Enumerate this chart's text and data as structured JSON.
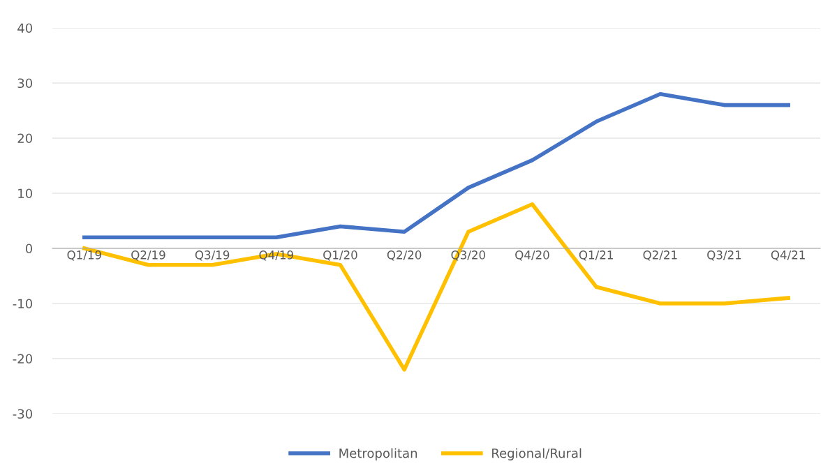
{
  "chart_data": {
    "type": "line",
    "categories": [
      "Q1/19",
      "Q2/19",
      "Q3/19",
      "Q4/19",
      "Q1/20",
      "Q2/20",
      "Q3/20",
      "Q4/20",
      "Q1/21",
      "Q2/21",
      "Q3/21",
      "Q4/21"
    ],
    "series": [
      {
        "name": "Metropolitan",
        "color": "#4472c4",
        "values": [
          2,
          2,
          2,
          2,
          4,
          3,
          11,
          16,
          23,
          28,
          26,
          26
        ]
      },
      {
        "name": "Regional/Rural",
        "color": "#ffc000",
        "values": [
          0,
          -3,
          -3,
          -1,
          -3,
          -22,
          3,
          8,
          -7,
          -10,
          -10,
          -9
        ]
      }
    ],
    "ylim": [
      -30,
      40
    ],
    "yticks": [
      -30,
      -20,
      -10,
      0,
      10,
      20,
      30,
      40
    ],
    "grid": "y",
    "legend": "bottom",
    "marker": "none",
    "line_style": "solid"
  }
}
